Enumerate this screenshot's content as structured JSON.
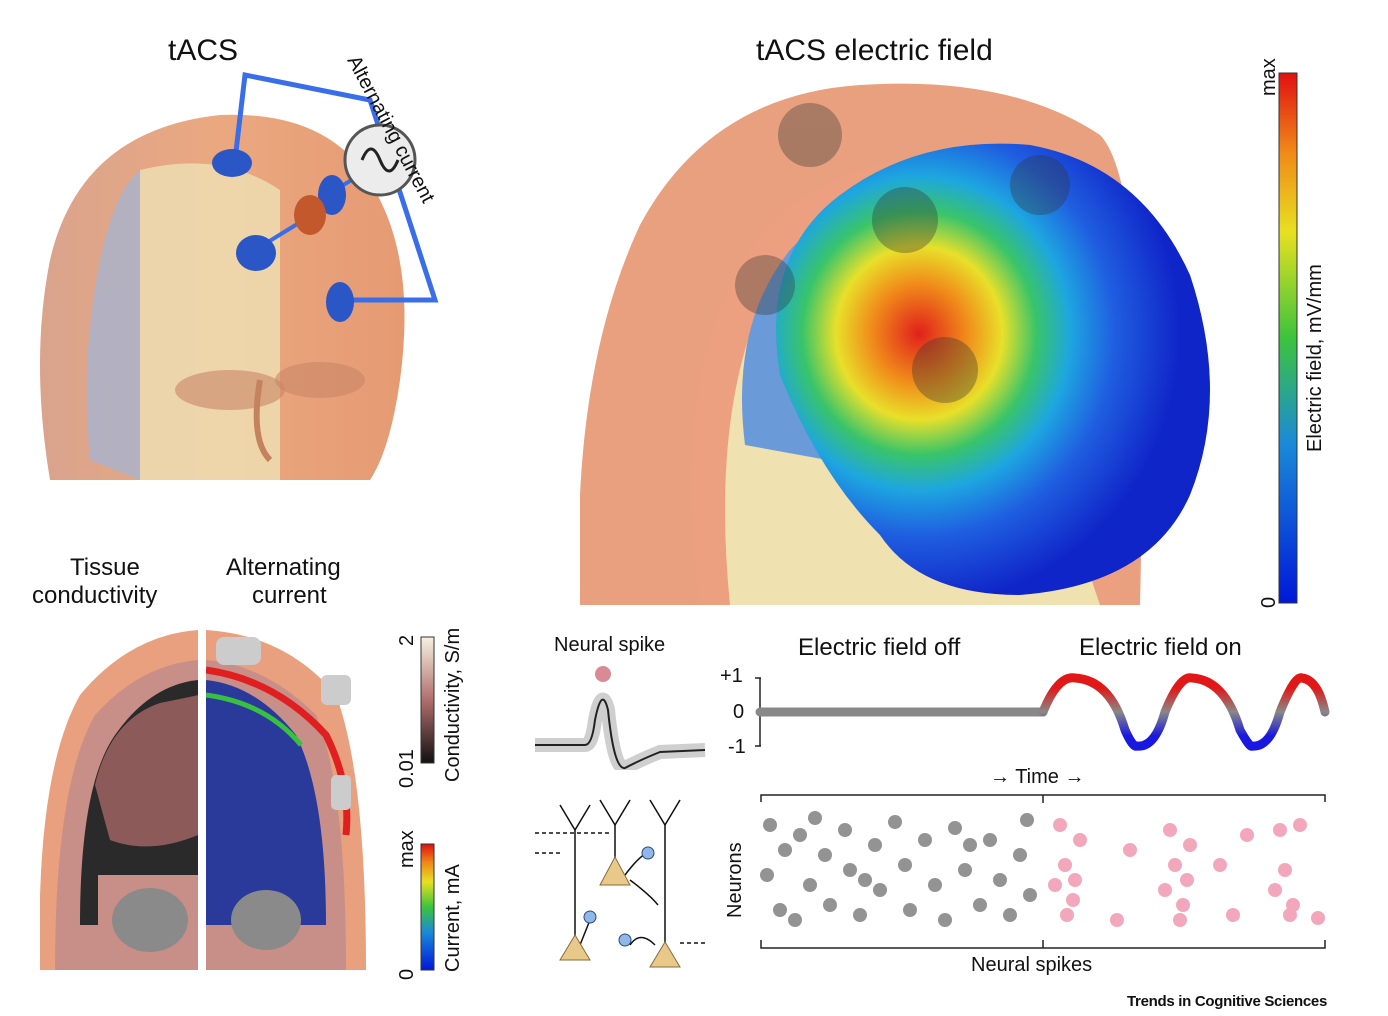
{
  "panel_a": {
    "title": "tACS",
    "curve_label": "Alternating current"
  },
  "panel_b": {
    "title": "tACS electric field",
    "colorbar": {
      "max": "max",
      "min": "0",
      "label": "Electric field, mV/mm"
    }
  },
  "panel_c": {
    "left_title_1": "Tissue",
    "left_title_2": "conductivity",
    "right_title_1": "Alternating",
    "right_title_2": "current",
    "conductivity_bar": {
      "max": "2",
      "min": "0.01",
      "label": "Conductivity, S/m"
    },
    "current_bar": {
      "max": "max",
      "min": "0",
      "label": "Current, mA"
    }
  },
  "panel_d": {
    "spike_title": "Neural spike",
    "off_label": "Electric field off",
    "on_label": "Electric field on",
    "ticks": {
      "plus": "+1",
      "zero": "0",
      "minus": "-1"
    },
    "time_label": "→ Time →",
    "neurons_label": "Neurons",
    "spikes_label": "Neural spikes"
  },
  "credit": "Trends in Cognitive Sciences",
  "colors": {
    "electrode": "#2a56c6",
    "wire": "#3a6ee8",
    "skin": "#e8a07e",
    "grey_dot": "#707070",
    "pink_dot": "#f08aa8"
  }
}
